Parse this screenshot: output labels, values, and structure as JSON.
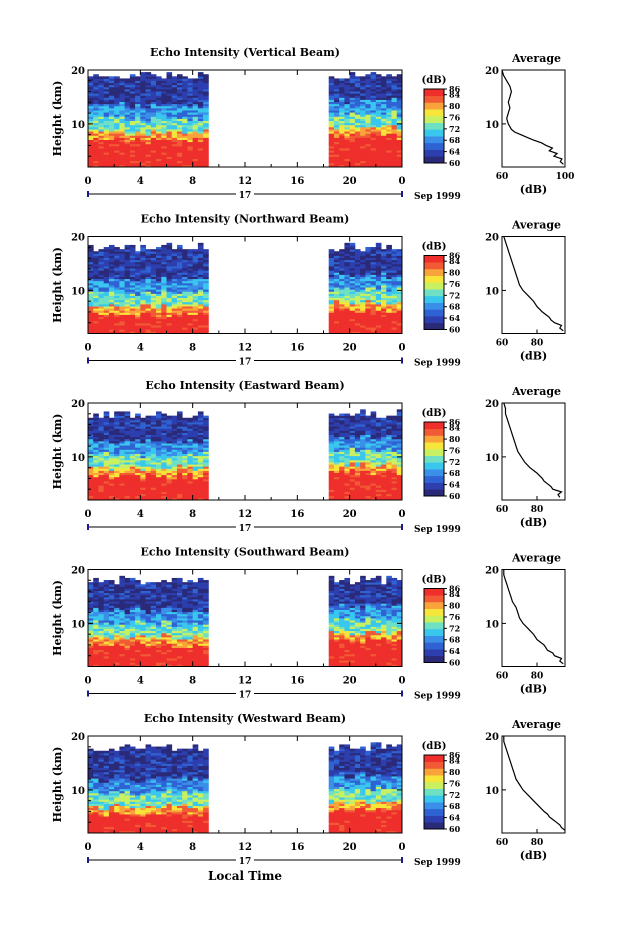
{
  "figure": {
    "date_label": "Sep 1999",
    "day_label": "17",
    "xlabel": "Local Time",
    "ylabel": "Height (km)",
    "colorbar_unit": "(dB)",
    "average_title": "Average",
    "average_xlabel": "(dB)"
  },
  "colormap": [
    "#2a2a78",
    "#2d3fae",
    "#2f63d4",
    "#3a8fe8",
    "#39c7ee",
    "#6fe0c4",
    "#c9f061",
    "#f7e53a",
    "#f9a43a",
    "#f15a35",
    "#ee2f2c"
  ],
  "chart_data": [
    {
      "type": "heatmap",
      "title": "Echo Intensity (Vertical Beam)",
      "x_ticks": [
        "0",
        "4",
        "8",
        "12",
        "16",
        "20",
        "0"
      ],
      "y_ticks": [
        "10",
        "20"
      ],
      "xlim": [
        0,
        24
      ],
      "ylim": [
        2,
        20
      ],
      "data_gap": [
        9,
        18.3
      ],
      "colorbar": {
        "range": [
          60,
          86
        ],
        "ticks": [
          "86",
          "84",
          "80",
          "76",
          "72",
          "68",
          "64",
          "60"
        ]
      },
      "top_height": 19,
      "low_layer_top": 8.5,
      "average": {
        "xlim": [
          60,
          100
        ],
        "x_ticks": [
          "60",
          "100"
        ],
        "y_ticks": [
          "10",
          "20"
        ],
        "profile": [
          [
            99,
            2.5
          ],
          [
            97,
            3.0
          ],
          [
            98,
            3.5
          ],
          [
            93,
            4.0
          ],
          [
            95,
            4.5
          ],
          [
            90,
            5.0
          ],
          [
            92,
            5.5
          ],
          [
            88,
            6.0
          ],
          [
            85,
            6.5
          ],
          [
            80,
            7.0
          ],
          [
            76,
            7.5
          ],
          [
            72,
            8.0
          ],
          [
            68,
            8.5
          ],
          [
            66,
            9.0
          ],
          [
            64,
            10.0
          ],
          [
            63,
            11.0
          ],
          [
            64,
            12.0
          ],
          [
            65,
            13.0
          ],
          [
            64,
            14.0
          ],
          [
            65,
            15.0
          ],
          [
            66,
            16.0
          ],
          [
            65,
            17.0
          ],
          [
            63,
            18.0
          ],
          [
            61,
            19.0
          ],
          [
            60,
            20.0
          ]
        ]
      }
    },
    {
      "type": "heatmap",
      "title": "Echo Intensity (Northward Beam)",
      "x_ticks": [
        "0",
        "4",
        "8",
        "12",
        "16",
        "20",
        "0"
      ],
      "y_ticks": [
        "10",
        "20"
      ],
      "xlim": [
        0,
        24
      ],
      "ylim": [
        2,
        20
      ],
      "data_gap": [
        9,
        18.3
      ],
      "colorbar": {
        "range": [
          60,
          86
        ],
        "ticks": [
          "86",
          "84",
          "80",
          "76",
          "72",
          "68",
          "64",
          "60"
        ]
      },
      "top_height": 18,
      "low_layer_top": 7,
      "average": {
        "xlim": [
          60,
          96
        ],
        "x_ticks": [
          "60",
          "80"
        ],
        "y_ticks": [
          "10",
          "20"
        ],
        "profile": [
          [
            95,
            2.5
          ],
          [
            93,
            3.0
          ],
          [
            94,
            3.5
          ],
          [
            90,
            4.0
          ],
          [
            88,
            4.5
          ],
          [
            87,
            5.0
          ],
          [
            85,
            5.5
          ],
          [
            83,
            6.0
          ],
          [
            80,
            7.0
          ],
          [
            78,
            8.0
          ],
          [
            75,
            9.0
          ],
          [
            72,
            10.0
          ],
          [
            70,
            11.0
          ],
          [
            69,
            12.0
          ],
          [
            68,
            13.0
          ],
          [
            67,
            14.0
          ],
          [
            66,
            15.0
          ],
          [
            65,
            16.0
          ],
          [
            64,
            17.0
          ],
          [
            63,
            18.0
          ],
          [
            62,
            19.0
          ],
          [
            61,
            20.0
          ]
        ]
      }
    },
    {
      "type": "heatmap",
      "title": "Echo Intensity (Eastward Beam)",
      "x_ticks": [
        "0",
        "4",
        "8",
        "12",
        "16",
        "20",
        "0"
      ],
      "y_ticks": [
        "10",
        "20"
      ],
      "xlim": [
        0,
        24
      ],
      "ylim": [
        2,
        20
      ],
      "data_gap": [
        9,
        18.3
      ],
      "colorbar": {
        "range": [
          60,
          86
        ],
        "ticks": [
          "86",
          "84",
          "80",
          "76",
          "72",
          "68",
          "64",
          "60"
        ]
      },
      "top_height": 18,
      "low_layer_top": 8,
      "average": {
        "xlim": [
          60,
          96
        ],
        "x_ticks": [
          "60",
          "80"
        ],
        "y_ticks": [
          "10",
          "20"
        ],
        "profile": [
          [
            93,
            2.5
          ],
          [
            92,
            3.0
          ],
          [
            94,
            3.5
          ],
          [
            89,
            4.0
          ],
          [
            88,
            4.5
          ],
          [
            86,
            5.0
          ],
          [
            84,
            5.5
          ],
          [
            83,
            6.0
          ],
          [
            80,
            7.0
          ],
          [
            76,
            8.0
          ],
          [
            73,
            9.0
          ],
          [
            71,
            10.0
          ],
          [
            69,
            11.0
          ],
          [
            68,
            12.0
          ],
          [
            67,
            13.0
          ],
          [
            66,
            14.0
          ],
          [
            65,
            15.0
          ],
          [
            64,
            16.0
          ],
          [
            63,
            17.0
          ],
          [
            62,
            18.0
          ],
          [
            62,
            19.0
          ],
          [
            61,
            20.0
          ]
        ]
      }
    },
    {
      "type": "heatmap",
      "title": "Echo Intensity (Southward Beam)",
      "x_ticks": [
        "0",
        "4",
        "8",
        "12",
        "16",
        "20",
        "0"
      ],
      "y_ticks": [
        "10",
        "20"
      ],
      "xlim": [
        0,
        24
      ],
      "ylim": [
        2,
        20
      ],
      "data_gap": [
        9,
        18.3
      ],
      "colorbar": {
        "range": [
          60,
          86
        ],
        "ticks": [
          "86",
          "84",
          "80",
          "76",
          "72",
          "68",
          "64",
          "60"
        ]
      },
      "top_height": 18,
      "low_layer_top": 7.5,
      "average": {
        "xlim": [
          60,
          96
        ],
        "x_ticks": [
          "60",
          "80"
        ],
        "y_ticks": [
          "10",
          "20"
        ],
        "profile": [
          [
            95,
            2.5
          ],
          [
            93,
            3.0
          ],
          [
            94,
            3.5
          ],
          [
            90,
            4.0
          ],
          [
            89,
            4.5
          ],
          [
            86,
            5.0
          ],
          [
            85,
            5.5
          ],
          [
            84,
            6.0
          ],
          [
            80,
            7.0
          ],
          [
            78,
            8.0
          ],
          [
            75,
            9.0
          ],
          [
            72,
            10.0
          ],
          [
            70,
            11.0
          ],
          [
            69,
            12.0
          ],
          [
            68,
            13.0
          ],
          [
            66,
            14.0
          ],
          [
            65,
            15.0
          ],
          [
            64,
            16.0
          ],
          [
            63,
            17.0
          ],
          [
            62,
            18.0
          ],
          [
            61,
            19.0
          ],
          [
            61,
            20.0
          ]
        ]
      }
    },
    {
      "type": "heatmap",
      "title": "Echo Intensity (Westward Beam)",
      "x_ticks": [
        "0",
        "4",
        "8",
        "12",
        "16",
        "20",
        "0"
      ],
      "y_ticks": [
        "10",
        "20"
      ],
      "xlim": [
        0,
        24
      ],
      "ylim": [
        2,
        20
      ],
      "data_gap": [
        9,
        18.3
      ],
      "colorbar": {
        "range": [
          60,
          86
        ],
        "ticks": [
          "86",
          "84",
          "80",
          "76",
          "72",
          "68",
          "64",
          "60"
        ]
      },
      "top_height": 18,
      "low_layer_top": 7,
      "average": {
        "xlim": [
          60,
          96
        ],
        "x_ticks": [
          "60",
          "80"
        ],
        "y_ticks": [
          "10",
          "20"
        ],
        "profile": [
          [
            96,
            2.5
          ],
          [
            94,
            3.0
          ],
          [
            93,
            3.5
          ],
          [
            91,
            4.0
          ],
          [
            89,
            4.5
          ],
          [
            87,
            5.0
          ],
          [
            86,
            5.5
          ],
          [
            84,
            6.0
          ],
          [
            81,
            7.0
          ],
          [
            78,
            8.0
          ],
          [
            75,
            9.0
          ],
          [
            72,
            10.0
          ],
          [
            70,
            11.0
          ],
          [
            68,
            12.0
          ],
          [
            67,
            13.0
          ],
          [
            66,
            14.0
          ],
          [
            65,
            15.0
          ],
          [
            64,
            16.0
          ],
          [
            63,
            17.0
          ],
          [
            62,
            18.0
          ],
          [
            61,
            19.0
          ],
          [
            61,
            20.0
          ]
        ]
      }
    }
  ]
}
